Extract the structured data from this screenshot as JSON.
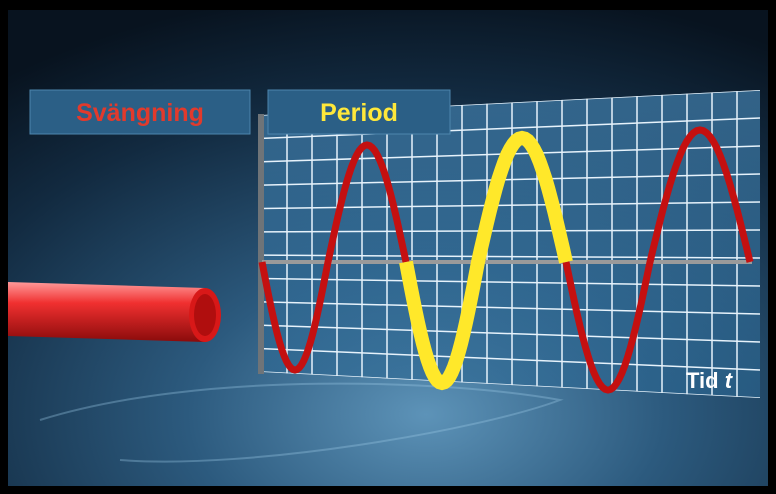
{
  "labels": {
    "left": "Svängning",
    "right": "Period"
  },
  "axis": {
    "label": "Tid",
    "symbol": "t"
  }
}
